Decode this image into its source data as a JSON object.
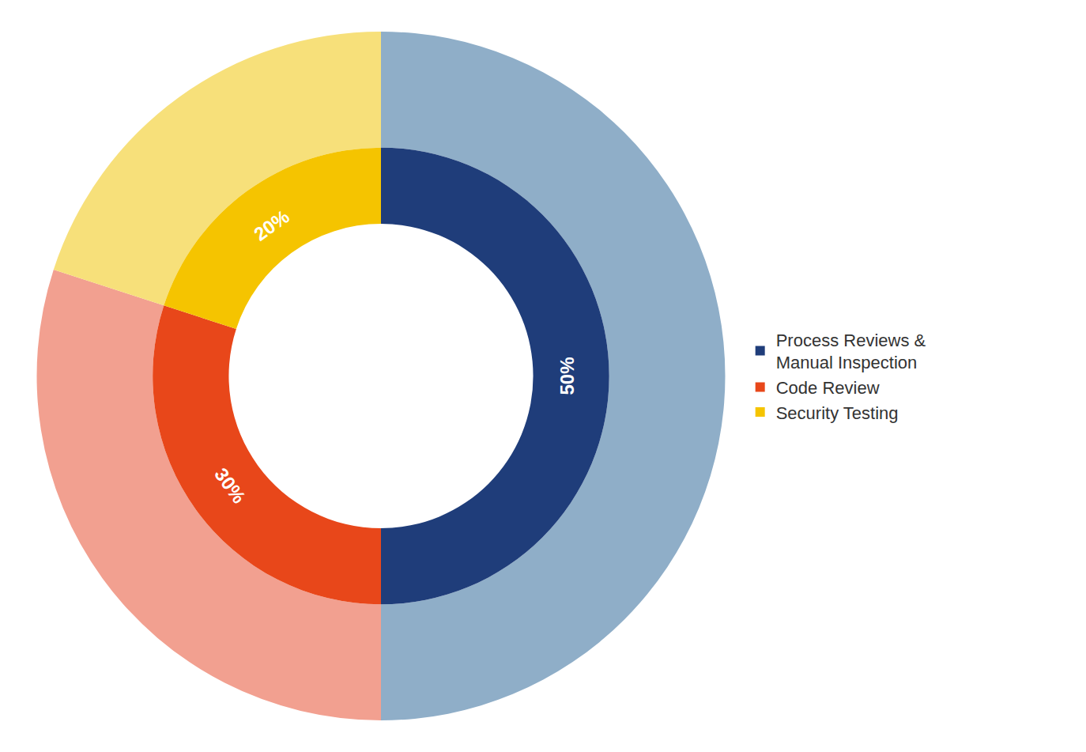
{
  "chart_data": {
    "type": "pie",
    "categories": [
      "Process Reviews &\nManual Inspection",
      "Code Review",
      "Security Testing"
    ],
    "series": [
      {
        "values": [
          50,
          30,
          20
        ],
        "value_labels": [
          "50%",
          "30%",
          "20%"
        ],
        "colors": [
          "#1f3d7a",
          "#e8471a",
          "#f5c400"
        ]
      },
      {
        "values": [
          50,
          30,
          20
        ],
        "colors": [
          "#8faec8",
          "#f2a090",
          "#f7e07a"
        ]
      }
    ],
    "data_labels": true,
    "legend": "right"
  }
}
